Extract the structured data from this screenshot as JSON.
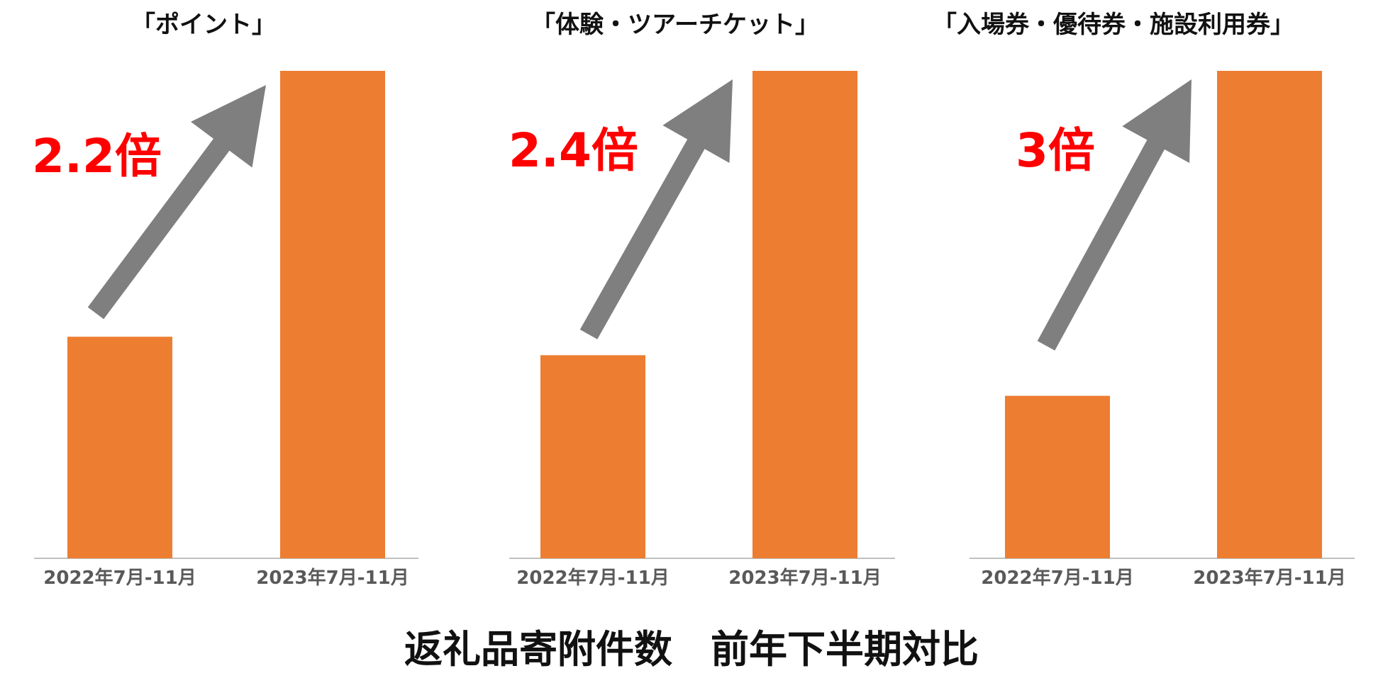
{
  "footer_title": "返礼品寄附件数　前年下半期対比",
  "colors": {
    "bar": "#ED7D31",
    "arrow": "#7F7F7F",
    "multiplier": "#FF0000",
    "axis": "#BFBFBF",
    "tick": "#595959"
  },
  "chart_data": [
    {
      "type": "bar",
      "title": "「ポイント」",
      "categories": [
        "2022年7月-11月",
        "2023年7月-11月"
      ],
      "values": [
        1,
        2.2
      ],
      "ylim": [
        0,
        2.2
      ],
      "annotation": "2.2倍",
      "annotation_icon": "up-arrow-icon",
      "grid": false
    },
    {
      "type": "bar",
      "title": "「体験・ツアーチケット」",
      "categories": [
        "2022年7月-11月",
        "2023年7月-11月"
      ],
      "values": [
        1,
        2.4
      ],
      "ylim": [
        0,
        2.4
      ],
      "annotation": "2.4倍",
      "annotation_icon": "up-arrow-icon",
      "grid": false
    },
    {
      "type": "bar",
      "title": "「入場券・優待券・施設利用券」",
      "categories": [
        "2022年7月-11月",
        "2023年7月-11月"
      ],
      "values": [
        1,
        3
      ],
      "ylim": [
        0,
        3
      ],
      "annotation": "3倍",
      "annotation_icon": "up-arrow-icon",
      "grid": false
    }
  ]
}
